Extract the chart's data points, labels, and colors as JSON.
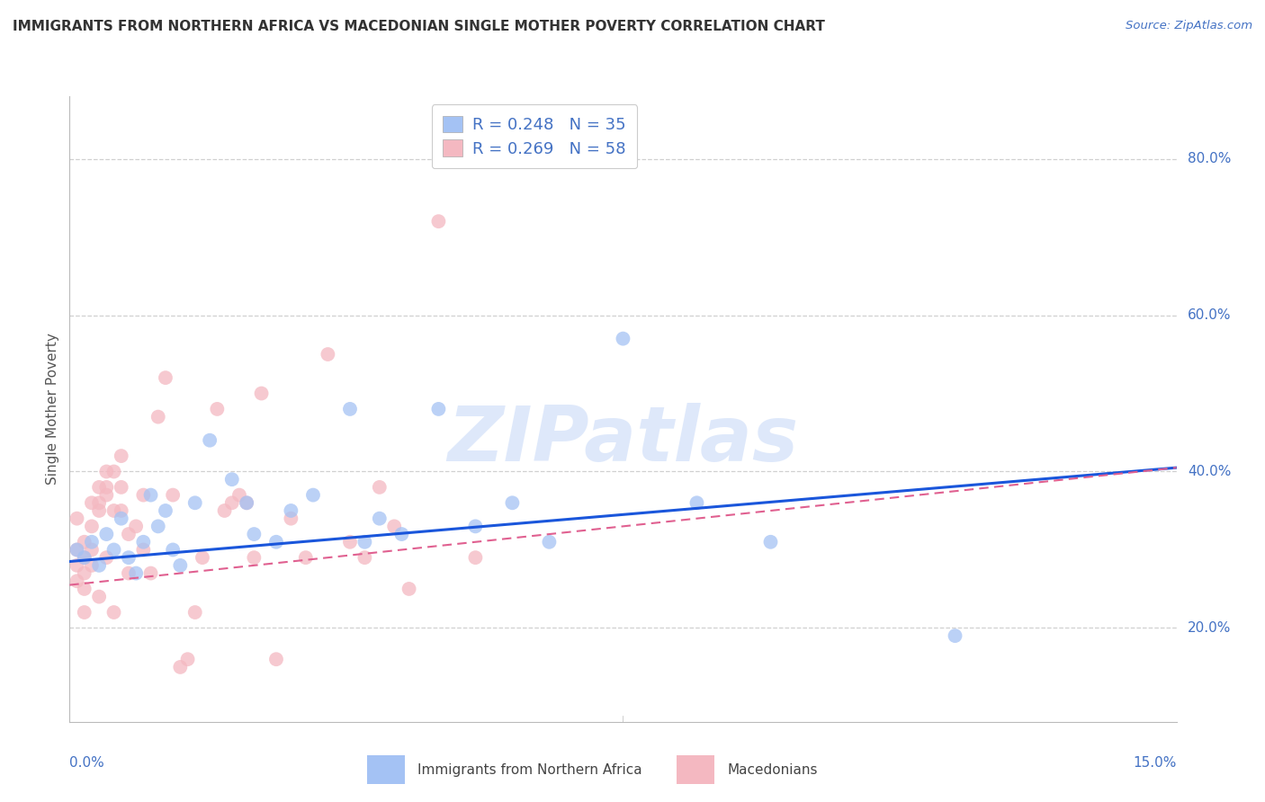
{
  "title": "IMMIGRANTS FROM NORTHERN AFRICA VS MACEDONIAN SINGLE MOTHER POVERTY CORRELATION CHART",
  "source": "Source: ZipAtlas.com",
  "ylabel": "Single Mother Poverty",
  "xlim": [
    0.0,
    0.15
  ],
  "ylim": [
    0.08,
    0.88
  ],
  "yticks": [
    0.2,
    0.4,
    0.6,
    0.8
  ],
  "ytick_labels": [
    "20.0%",
    "40.0%",
    "60.0%",
    "80.0%"
  ],
  "blue_fill": "#a4c2f4",
  "pink_fill": "#f4b8c1",
  "blue_line_color": "#1a56db",
  "pink_line_color": "#e06090",
  "axis_label_color": "#4472c4",
  "legend_text_color": "#4472c4",
  "legend_n_color": "#e06c00",
  "legend_blue_r": "R = 0.248",
  "legend_blue_n": "N = 35",
  "legend_pink_r": "R = 0.269",
  "legend_pink_n": "N = 58",
  "blue_scatter_x": [
    0.001,
    0.002,
    0.003,
    0.004,
    0.005,
    0.006,
    0.007,
    0.008,
    0.009,
    0.01,
    0.011,
    0.012,
    0.013,
    0.014,
    0.015,
    0.017,
    0.019,
    0.022,
    0.024,
    0.025,
    0.028,
    0.03,
    0.033,
    0.038,
    0.04,
    0.042,
    0.045,
    0.05,
    0.055,
    0.06,
    0.065,
    0.075,
    0.085,
    0.095,
    0.12
  ],
  "blue_scatter_y": [
    0.3,
    0.29,
    0.31,
    0.28,
    0.32,
    0.3,
    0.34,
    0.29,
    0.27,
    0.31,
    0.37,
    0.33,
    0.35,
    0.3,
    0.28,
    0.36,
    0.44,
    0.39,
    0.36,
    0.32,
    0.31,
    0.35,
    0.37,
    0.48,
    0.31,
    0.34,
    0.32,
    0.48,
    0.33,
    0.36,
    0.31,
    0.57,
    0.36,
    0.31,
    0.19
  ],
  "blue_line_x": [
    0.0,
    0.15
  ],
  "blue_line_y": [
    0.285,
    0.405
  ],
  "pink_line_x": [
    0.0,
    0.15
  ],
  "pink_line_y": [
    0.255,
    0.405
  ],
  "pink_scatter_x": [
    0.001,
    0.001,
    0.001,
    0.001,
    0.002,
    0.002,
    0.002,
    0.002,
    0.002,
    0.003,
    0.003,
    0.003,
    0.003,
    0.004,
    0.004,
    0.004,
    0.004,
    0.005,
    0.005,
    0.005,
    0.005,
    0.006,
    0.006,
    0.006,
    0.007,
    0.007,
    0.007,
    0.008,
    0.008,
    0.009,
    0.01,
    0.01,
    0.011,
    0.012,
    0.013,
    0.014,
    0.015,
    0.016,
    0.017,
    0.018,
    0.02,
    0.021,
    0.022,
    0.023,
    0.024,
    0.025,
    0.026,
    0.028,
    0.03,
    0.032,
    0.035,
    0.038,
    0.04,
    0.042,
    0.044,
    0.046,
    0.05,
    0.055
  ],
  "pink_scatter_y": [
    0.3,
    0.28,
    0.26,
    0.34,
    0.29,
    0.31,
    0.25,
    0.27,
    0.22,
    0.3,
    0.33,
    0.36,
    0.28,
    0.35,
    0.38,
    0.36,
    0.24,
    0.37,
    0.4,
    0.38,
    0.29,
    0.4,
    0.35,
    0.22,
    0.38,
    0.35,
    0.42,
    0.32,
    0.27,
    0.33,
    0.37,
    0.3,
    0.27,
    0.47,
    0.52,
    0.37,
    0.15,
    0.16,
    0.22,
    0.29,
    0.48,
    0.35,
    0.36,
    0.37,
    0.36,
    0.29,
    0.5,
    0.16,
    0.34,
    0.29,
    0.55,
    0.31,
    0.29,
    0.38,
    0.33,
    0.25,
    0.72,
    0.29
  ],
  "watermark_text": "ZIPatlas",
  "watermark_color": "#c9daf8",
  "background_color": "#ffffff",
  "grid_color": "#d0d0d0",
  "bottom_legend_labels": [
    "Immigrants from Northern Africa",
    "Macedonians"
  ]
}
